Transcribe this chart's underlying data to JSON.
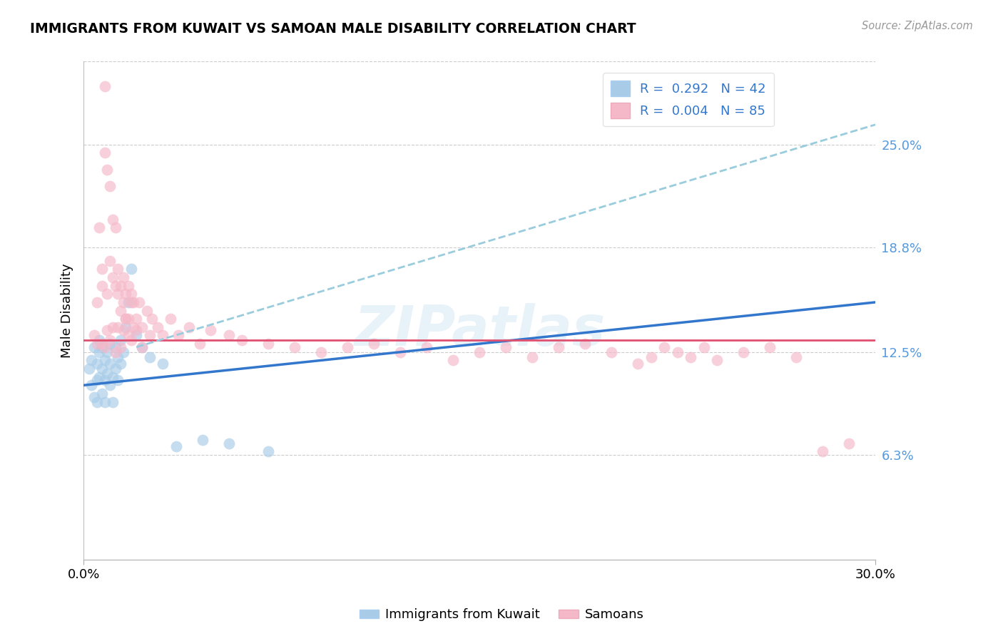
{
  "title": "IMMIGRANTS FROM KUWAIT VS SAMOAN MALE DISABILITY CORRELATION CHART",
  "source": "Source: ZipAtlas.com",
  "ylabel": "Male Disability",
  "ytick_labels": [
    "25.0%",
    "18.8%",
    "12.5%",
    "6.3%"
  ],
  "ytick_values": [
    0.25,
    0.188,
    0.125,
    0.063
  ],
  "xlim": [
    0.0,
    0.3
  ],
  "ylim": [
    0.0,
    0.3
  ],
  "blue_color": "#a8cce8",
  "pink_color": "#f5b8c8",
  "blue_line_color": "#3377cc",
  "pink_line_color": "#e05070",
  "dashed_line_color": "#99ccdd",
  "kuwait_data_x": [
    0.002,
    0.003,
    0.003,
    0.004,
    0.004,
    0.005,
    0.005,
    0.005,
    0.006,
    0.006,
    0.006,
    0.007,
    0.007,
    0.007,
    0.008,
    0.008,
    0.008,
    0.009,
    0.009,
    0.01,
    0.01,
    0.01,
    0.011,
    0.011,
    0.012,
    0.012,
    0.013,
    0.013,
    0.014,
    0.014,
    0.015,
    0.016,
    0.017,
    0.018,
    0.02,
    0.022,
    0.025,
    0.03,
    0.035,
    0.045,
    0.055,
    0.07
  ],
  "kuwait_data_y": [
    0.115,
    0.105,
    0.12,
    0.098,
    0.128,
    0.108,
    0.118,
    0.095,
    0.11,
    0.125,
    0.132,
    0.1,
    0.115,
    0.128,
    0.108,
    0.12,
    0.095,
    0.112,
    0.125,
    0.105,
    0.118,
    0.13,
    0.095,
    0.11,
    0.115,
    0.128,
    0.108,
    0.122,
    0.118,
    0.132,
    0.125,
    0.14,
    0.155,
    0.175,
    0.135,
    0.128,
    0.122,
    0.118,
    0.068,
    0.072,
    0.07,
    0.065
  ],
  "samoan_data_x": [
    0.004,
    0.005,
    0.005,
    0.006,
    0.007,
    0.007,
    0.008,
    0.008,
    0.009,
    0.009,
    0.01,
    0.01,
    0.011,
    0.011,
    0.012,
    0.012,
    0.013,
    0.013,
    0.014,
    0.014,
    0.015,
    0.015,
    0.016,
    0.016,
    0.017,
    0.017,
    0.018,
    0.018,
    0.019,
    0.019,
    0.02,
    0.021,
    0.022,
    0.024,
    0.026,
    0.028,
    0.03,
    0.033,
    0.036,
    0.04,
    0.044,
    0.048,
    0.055,
    0.06,
    0.07,
    0.08,
    0.09,
    0.1,
    0.11,
    0.12,
    0.13,
    0.14,
    0.15,
    0.16,
    0.17,
    0.18,
    0.19,
    0.2,
    0.21,
    0.215,
    0.22,
    0.225,
    0.23,
    0.235,
    0.24,
    0.25,
    0.26,
    0.27,
    0.28,
    0.29,
    0.007,
    0.008,
    0.01,
    0.012,
    0.013,
    0.015,
    0.016,
    0.018,
    0.02,
    0.022,
    0.025,
    0.009,
    0.011,
    0.014,
    0.017
  ],
  "samoan_data_y": [
    0.135,
    0.155,
    0.13,
    0.2,
    0.175,
    0.165,
    0.245,
    0.285,
    0.235,
    0.16,
    0.225,
    0.18,
    0.17,
    0.205,
    0.2,
    0.165,
    0.16,
    0.175,
    0.15,
    0.165,
    0.155,
    0.17,
    0.145,
    0.16,
    0.165,
    0.145,
    0.155,
    0.16,
    0.14,
    0.155,
    0.145,
    0.155,
    0.14,
    0.15,
    0.145,
    0.14,
    0.135,
    0.145,
    0.135,
    0.14,
    0.13,
    0.138,
    0.135,
    0.132,
    0.13,
    0.128,
    0.125,
    0.128,
    0.13,
    0.125,
    0.128,
    0.12,
    0.125,
    0.128,
    0.122,
    0.128,
    0.13,
    0.125,
    0.118,
    0.122,
    0.128,
    0.125,
    0.122,
    0.128,
    0.12,
    0.125,
    0.128,
    0.122,
    0.065,
    0.07,
    0.13,
    0.128,
    0.132,
    0.125,
    0.14,
    0.138,
    0.145,
    0.132,
    0.138,
    0.128,
    0.135,
    0.138,
    0.14,
    0.128,
    0.135
  ],
  "pink_hline_y": 0.132,
  "blue_trendline_x": [
    0.0,
    0.3
  ],
  "blue_trendline_y": [
    0.105,
    0.155
  ],
  "dashed_trendline_x": [
    0.02,
    0.3
  ],
  "dashed_trendline_y": [
    0.128,
    0.262
  ]
}
